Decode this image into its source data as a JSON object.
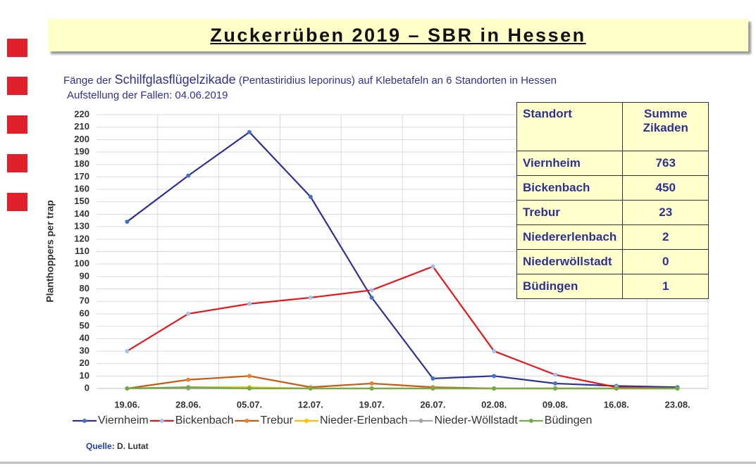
{
  "header": {
    "title": "Zuckerrüben 2019 – SBR in Hessen"
  },
  "subtitle": {
    "lead": "Fänge der",
    "species": "Schilfglasflügelzikade",
    "rest": "(Pentastiridius leporinus)  auf Klebetafeln an 6 Standorten in Hessen",
    "line2": "Aufstellung der Fallen: 04.06.2019"
  },
  "chart_data": {
    "type": "line",
    "y_label": "Planthoppers per trap",
    "categories": [
      "19.06.",
      "28.06.",
      "05.07.",
      "12.07.",
      "19.07.",
      "26.07.",
      "02.08.",
      "09.08.",
      "16.08.",
      "23.08."
    ],
    "series": [
      {
        "name": "Viernheim",
        "color": "#2e3192",
        "marker_color": "#4472c4",
        "values": [
          134,
          171,
          206,
          154,
          73,
          8,
          10,
          4,
          2,
          1
        ]
      },
      {
        "name": "Bickenbach",
        "color": "#e8151b",
        "marker_color": "#9dc3e6",
        "values": [
          30,
          60,
          68,
          73,
          79,
          98,
          30,
          11,
          1,
          0
        ]
      },
      {
        "name": "Trebur",
        "color": "#c55a11",
        "marker_color": "#ed7d31",
        "values": [
          0,
          7,
          10,
          1,
          4,
          1,
          0,
          0,
          0,
          0
        ]
      },
      {
        "name": "Nieder-Erlenbach",
        "color": "#ffc000",
        "marker_color": "#ffc000",
        "values": [
          0,
          1,
          1,
          0,
          0,
          0,
          0,
          0,
          0,
          0
        ]
      },
      {
        "name": "Nieder-Wöllstadt",
        "color": "#a5a5a5",
        "marker_color": "#a5a5a5",
        "values": [
          0,
          0,
          0,
          0,
          0,
          0,
          0,
          0,
          0,
          0
        ]
      },
      {
        "name": "Büdingen",
        "color": "#70ad47",
        "marker_color": "#70ad47",
        "values": [
          0,
          1,
          0,
          0,
          0,
          0,
          0,
          0,
          0,
          0
        ]
      }
    ],
    "ylim": [
      0,
      220
    ],
    "yticks": [
      0,
      10,
      20,
      30,
      40,
      50,
      60,
      70,
      80,
      90,
      100,
      110,
      120,
      130,
      140,
      150,
      160,
      170,
      180,
      190,
      200,
      210,
      220
    ],
    "grid": true,
    "legend": "bottom"
  },
  "table": {
    "headers": [
      "Standort",
      "Summe Zikaden"
    ],
    "rows": [
      [
        "Viernheim",
        763
      ],
      [
        "Bickenbach",
        450
      ],
      [
        "Trebur",
        23
      ],
      [
        "Niedererlenbach",
        2
      ],
      [
        "Niederwöllstadt",
        0
      ],
      [
        "Büdingen",
        1
      ]
    ]
  },
  "source": {
    "label": "Quelle",
    "text": ": D. Lutat"
  }
}
